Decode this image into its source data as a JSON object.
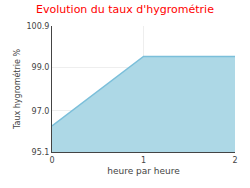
{
  "chart_data": {
    "type": "area",
    "title": "Evolution du taux d'hygrométrie",
    "xlabel": "heure par heure",
    "ylabel": "Taux hygrométrie %",
    "x": [
      0,
      1,
      2
    ],
    "values": [
      96.3,
      99.5,
      99.5
    ],
    "color": "#7bbfda",
    "xlim": [
      0,
      2
    ],
    "ylim": [
      95.1,
      100.9
    ],
    "xticks": [
      0,
      1,
      2
    ],
    "yticks": [
      95.1,
      {
        "value": 97.0,
        "label": "97.0"
      },
      {
        "value": 99.0,
        "label": "99.0"
      },
      100.9
    ],
    "grid": true
  }
}
